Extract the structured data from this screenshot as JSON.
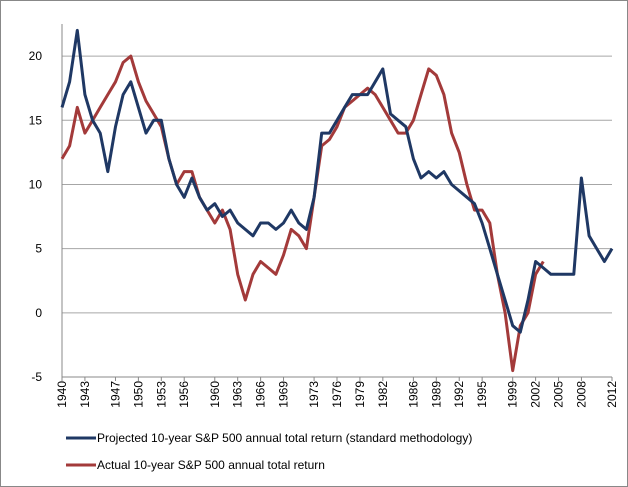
{
  "chart_data": {
    "type": "line",
    "x": [
      1940,
      1941,
      1942,
      1943,
      1944,
      1945,
      1946,
      1947,
      1948,
      1949,
      1950,
      1951,
      1952,
      1953,
      1954,
      1955,
      1956,
      1957,
      1958,
      1959,
      1960,
      1961,
      1962,
      1963,
      1964,
      1965,
      1966,
      1967,
      1968,
      1969,
      1970,
      1971,
      1972,
      1973,
      1974,
      1975,
      1976,
      1977,
      1978,
      1979,
      1980,
      1981,
      1982,
      1983,
      1984,
      1985,
      1986,
      1987,
      1988,
      1989,
      1990,
      1991,
      1992,
      1993,
      1994,
      1995,
      1996,
      1997,
      1998,
      1999,
      2000,
      2001,
      2002,
      2003,
      2004,
      2005,
      2006,
      2007,
      2008,
      2009,
      2010,
      2011,
      2012
    ],
    "series": [
      {
        "name": "Projected 10-year S&P 500 annual total return (standard methodology)",
        "color": "#1f3864",
        "values": [
          16,
          18,
          22,
          17,
          15,
          14,
          11,
          14.5,
          17,
          18,
          16,
          14,
          15,
          15,
          12,
          10,
          9,
          10.5,
          9,
          8,
          8.5,
          7.5,
          8,
          7,
          6.5,
          6,
          7,
          7,
          6.5,
          7,
          8,
          7,
          6.5,
          9,
          14,
          14,
          15,
          16,
          17,
          17,
          17,
          18,
          19,
          15.5,
          15,
          14.5,
          12,
          10.5,
          11,
          10.5,
          11,
          10,
          9.5,
          9,
          8.5,
          7,
          5,
          3,
          1,
          -1,
          -1.5,
          1,
          4,
          3.5,
          3,
          3,
          3,
          3,
          10.5,
          6,
          5,
          4,
          5
        ]
      },
      {
        "name": "Actual 10-year S&P 500 annual total return",
        "color": "#a33a3a",
        "values": [
          12,
          13,
          16,
          14,
          15,
          16,
          17,
          18,
          19.5,
          20,
          18,
          16.5,
          15.5,
          14.5,
          12,
          10,
          11,
          11,
          9,
          8,
          7,
          8,
          6.5,
          3,
          1,
          3,
          4,
          3.5,
          3,
          4.5,
          6.5,
          6,
          5,
          9,
          13,
          13.5,
          14.5,
          16,
          16.5,
          17,
          17.5,
          17,
          16,
          15,
          14,
          14,
          15,
          17,
          19,
          18.5,
          17,
          14,
          12.5,
          10,
          8,
          8,
          7,
          3,
          0,
          -4.5,
          -1,
          0,
          3,
          4,
          null,
          null,
          null,
          null,
          null,
          null,
          null,
          null,
          null
        ]
      }
    ],
    "xlim": [
      1940,
      2012
    ],
    "xticks": [
      1940,
      1943,
      1947,
      1950,
      1953,
      1956,
      1960,
      1963,
      1966,
      1969,
      1973,
      1976,
      1979,
      1982,
      1986,
      1989,
      1992,
      1995,
      1999,
      2002,
      2005,
      2008,
      2012
    ],
    "ylim": [
      -5,
      22.5
    ],
    "yticks": [
      -5,
      0,
      5,
      10,
      15,
      20
    ],
    "grid": true
  }
}
